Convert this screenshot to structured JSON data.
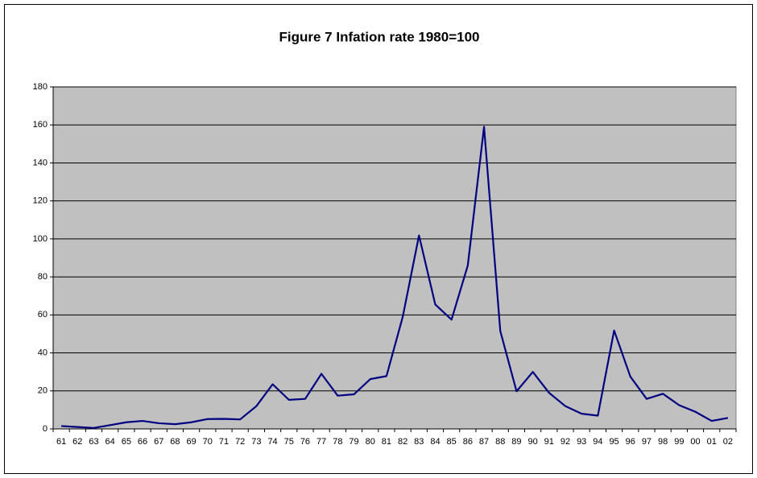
{
  "chart_data": {
    "type": "line",
    "title": "Figure 7 Infation rate 1980=100",
    "categories": [
      "61",
      "62",
      "63",
      "64",
      "65",
      "66",
      "67",
      "68",
      "69",
      "70",
      "71",
      "72",
      "73",
      "74",
      "75",
      "76",
      "77",
      "78",
      "79",
      "80",
      "81",
      "82",
      "83",
      "84",
      "85",
      "86",
      "87",
      "88",
      "89",
      "90",
      "91",
      "92",
      "93",
      "94",
      "95",
      "96",
      "97",
      "98",
      "99",
      "00",
      "01",
      "02"
    ],
    "series": [
      {
        "color": "#000080",
        "values": [
          1.5,
          1,
          0.5,
          2,
          3.5,
          4.2,
          3,
          2.5,
          3.5,
          5.2,
          5.3,
          5,
          12,
          23.5,
          15.3,
          15.8,
          29,
          17.5,
          18.2,
          26.2,
          27.8,
          59,
          101.8,
          65.5,
          57.5,
          86,
          159,
          51.5,
          19.8,
          30,
          19,
          12,
          8,
          7,
          51.8,
          27.5,
          15.8,
          18.5,
          12.5,
          9,
          4.2,
          5.8
        ]
      }
    ],
    "ylim": [
      0,
      180
    ],
    "yticks": [
      0,
      20,
      40,
      60,
      80,
      100,
      120,
      140,
      160,
      180
    ],
    "grid": true,
    "plot_background": "#c0c0c0"
  }
}
